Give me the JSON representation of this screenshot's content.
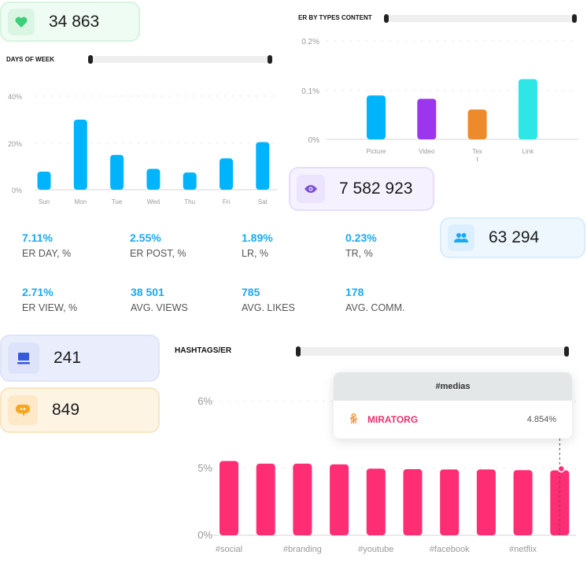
{
  "cards": {
    "likes": {
      "value": "34 863",
      "icon": "heart-icon",
      "color": "#3ccf7a"
    },
    "views": {
      "value": "7 582 923",
      "icon": "eye-icon",
      "color": "#7b4fd6"
    },
    "followers": {
      "value": "63 294",
      "icon": "people-icon",
      "color": "#1aaaf0"
    },
    "posts": {
      "value": "241",
      "icon": "laptop-icon",
      "color": "#3559d8"
    },
    "comments": {
      "value": "849",
      "icon": "comment-icon",
      "color": "#f5a623"
    }
  },
  "metrics": [
    {
      "value": "7.11%",
      "label": "ER DAY, %"
    },
    {
      "value": "2.55%",
      "label": "ER POST, %"
    },
    {
      "value": "1.89%",
      "label": "LR, %"
    },
    {
      "value": "0.23%",
      "label": "TR, %"
    },
    {
      "value": "2.71%",
      "label": "ER VIEW, %"
    },
    {
      "value": "38 501",
      "label": "AVG. VIEWS"
    },
    {
      "value": "785",
      "label": "AVG. LIKES"
    },
    {
      "value": "178",
      "label": "AVG. COMM."
    }
  ],
  "tooltip": {
    "header": "#medias",
    "name": "MIRATORG",
    "value": "4.854%",
    "icon": "odnoklassniki-icon"
  },
  "chart_data": [
    {
      "type": "bar",
      "title": "DAYS OF WEEK",
      "categories": [
        "Sun",
        "Mon",
        "Tue",
        "Wed",
        "Thu",
        "Fri",
        "Sat"
      ],
      "values": [
        7.8,
        30,
        15,
        9,
        7.4,
        13.5,
        20.5
      ],
      "ticks": [
        "0%",
        "20%",
        "40%"
      ],
      "tick_values": [
        0,
        20,
        40
      ],
      "ylim": [
        0,
        40
      ],
      "grid": true,
      "colors": [
        "#00b4fc"
      ]
    },
    {
      "type": "bar",
      "title": "ER BY TYPES CONTENT",
      "categories": [
        "Picture",
        "Video",
        "Text",
        "Link"
      ],
      "category_labels": [
        "Picture",
        "Video",
        "Tex\nt",
        "Link"
      ],
      "values": [
        0.09,
        0.083,
        0.061,
        0.123
      ],
      "ticks": [
        "0%",
        "0.1%",
        "0.2%"
      ],
      "tick_values": [
        0,
        0.1,
        0.2
      ],
      "ylim": [
        0,
        0.2
      ],
      "grid": true,
      "colors": [
        "#00b4fc",
        "#9b35ee",
        "#ec8a2c",
        "#2fe6e6"
      ]
    },
    {
      "type": "bar",
      "title": "HASHTAGS/ER",
      "categories": [
        "#social",
        "",
        "#branding",
        "",
        "#youtube",
        "",
        "#facebook",
        "",
        "#netflix",
        "#medias"
      ],
      "values": [
        5.11,
        5.07,
        5.07,
        5.06,
        4.98,
        4.94,
        4.92,
        4.92,
        4.87,
        4.854
      ],
      "ticks": [
        "0%",
        "5%",
        "6%"
      ],
      "tick_values": [
        0,
        5,
        6
      ],
      "ylim": [
        0,
        6
      ],
      "grid": true,
      "colors": [
        "#ff2d73"
      ]
    }
  ]
}
